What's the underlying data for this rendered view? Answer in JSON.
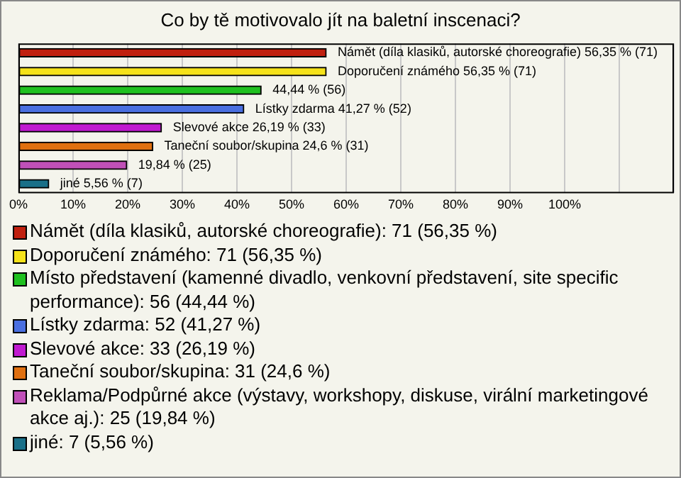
{
  "chart_data": {
    "type": "bar",
    "orientation": "horizontal",
    "stacked": true,
    "title": "Co by tě motivovalo jít na baletní inscenaci?",
    "categories": [
      null,
      null,
      null,
      null,
      null,
      null,
      null,
      null
    ],
    "series": [
      {
        "name": "Námět (díla klasiků, autorské choreografie): 71 (56,35 %)",
        "color": "#c0200f",
        "values": [
          56.35,
          null,
          null,
          null,
          null,
          null,
          null,
          null
        ],
        "value_labels": [
          "Námět (díla klasiků, autorské choreografie) 56,35 % (71)",
          null,
          null,
          null,
          null,
          null,
          null,
          null
        ]
      },
      {
        "name": "Doporučení známého: 71 (56,35 %)",
        "color": "#f5e21a",
        "values": [
          null,
          56.35,
          null,
          null,
          null,
          null,
          null,
          null
        ],
        "value_labels": [
          null,
          "Doporučení známého 56,35 % (71)",
          null,
          null,
          null,
          null,
          null,
          null
        ]
      },
      {
        "name": "Místo představení (kamenné divadlo, venkovní představení, site specific performance): 56 (44,44 %)",
        "color": "#1fc01f",
        "values": [
          null,
          null,
          44.44,
          null,
          null,
          null,
          null,
          null
        ],
        "value_labels": [
          null,
          null,
          "44,44 % (56)",
          null,
          null,
          null,
          null,
          null
        ]
      },
      {
        "name": "Lístky zdarma: 52 (41,27 %)",
        "color": "#4a6fe0",
        "values": [
          null,
          null,
          null,
          41.27,
          null,
          null,
          null,
          null
        ],
        "value_labels": [
          null,
          null,
          null,
          "Lístky zdarma 41,27 % (52)",
          null,
          null,
          null,
          null
        ]
      },
      {
        "name": "Slevové akce: 33 (26,19 %)",
        "color": "#c01ad0",
        "values": [
          null,
          null,
          null,
          null,
          26.19,
          null,
          null,
          null
        ],
        "value_labels": [
          null,
          null,
          null,
          null,
          "Slevové akce 26,19 % (33)",
          null,
          null,
          null
        ]
      },
      {
        "name": "Taneční soubor/skupina: 31 (24,6 %)",
        "color": "#e07010",
        "values": [
          null,
          null,
          null,
          null,
          null,
          24.6,
          null,
          null
        ],
        "value_labels": [
          null,
          null,
          null,
          null,
          null,
          "Taneční soubor/skupina 24,6 % (31)",
          null,
          null
        ]
      },
      {
        "name": "Reklama/Podpůrné akce (výstavy, workshopy, diskuse, virální marketingové akce aj.): 25 (19,84 %)",
        "color": "#c050b8",
        "values": [
          null,
          null,
          null,
          null,
          null,
          null,
          19.84,
          null
        ],
        "value_labels": [
          null,
          null,
          null,
          null,
          null,
          null,
          "19,84 % (25)",
          null
        ]
      },
      {
        "name": "jiné: 7 (5,56 %)",
        "color": "#1a7088",
        "values": [
          null,
          null,
          null,
          null,
          null,
          null,
          null,
          5.56
        ],
        "value_labels": [
          null,
          null,
          null,
          null,
          null,
          null,
          null,
          "jiné 5,56 % (7)"
        ]
      }
    ],
    "xlim": [
      0,
      120
    ],
    "xticks": [
      {
        "value": 0,
        "label": "0%"
      },
      {
        "value": 10,
        "label": "10%"
      },
      {
        "value": 20,
        "label": "20%"
      },
      {
        "value": 30,
        "label": "30%"
      },
      {
        "value": 40,
        "label": "40%"
      },
      {
        "value": 50,
        "label": "50%"
      },
      {
        "value": 60,
        "label": "60%"
      },
      {
        "value": 70,
        "label": "70%"
      },
      {
        "value": 80,
        "label": "80%"
      },
      {
        "value": 90,
        "label": "90%"
      },
      {
        "value": 100,
        "label": "100%"
      },
      {
        "value": 110,
        "label": null
      },
      {
        "value": 120,
        "label": null
      }
    ],
    "grid": "x",
    "tick_labels": "x",
    "legend": "bottom"
  }
}
